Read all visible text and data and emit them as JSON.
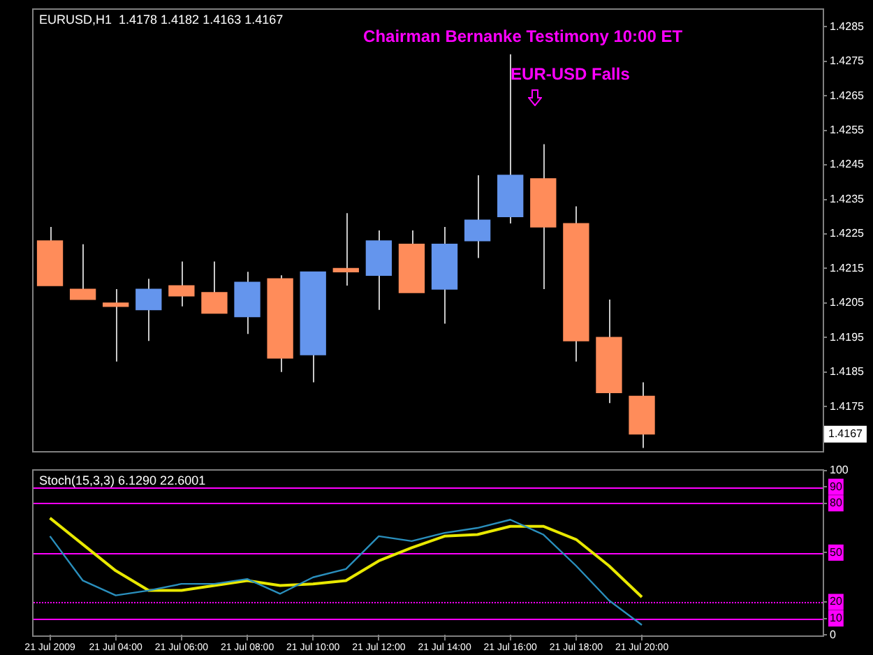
{
  "chart_data": [
    {
      "type": "candlestick",
      "title": "EURUSD,H1  1.4178 1.4182 1.4163 1.4167",
      "categories": [
        null,
        null,
        null,
        null,
        null,
        null,
        null,
        null,
        null,
        null,
        null,
        null,
        null,
        null,
        null,
        null,
        null,
        null,
        null,
        null,
        null,
        null,
        null,
        null
      ],
      "ohlc": [
        [
          1.4223,
          1.4227,
          1.421,
          1.421
        ],
        [
          1.4209,
          1.4222,
          1.4206,
          1.4206
        ],
        [
          1.4205,
          1.4209,
          1.4188,
          1.4204
        ],
        [
          1.4203,
          1.4212,
          1.4194,
          1.4209
        ],
        [
          1.421,
          1.4217,
          1.4204,
          1.4207
        ],
        [
          1.4208,
          1.4217,
          1.4202,
          1.4202
        ],
        [
          1.4201,
          1.4214,
          1.4196,
          1.4211
        ],
        [
          1.4212,
          1.4213,
          1.4185,
          1.4189
        ],
        [
          1.419,
          1.4214,
          1.4182,
          1.4214
        ],
        [
          1.4215,
          1.4231,
          1.421,
          1.4214
        ],
        [
          1.4213,
          1.4226,
          1.4203,
          1.4223
        ],
        [
          1.4222,
          1.4226,
          1.4208,
          1.4208
        ],
        [
          1.4209,
          1.4227,
          1.4199,
          1.4222
        ],
        [
          1.4223,
          1.4242,
          1.4218,
          1.4229
        ],
        [
          1.423,
          1.4277,
          1.4228,
          1.4242
        ],
        [
          1.4241,
          1.4251,
          1.4209,
          1.4227
        ],
        [
          1.4228,
          1.4233,
          1.4188,
          1.4194
        ],
        [
          1.4195,
          1.4206,
          1.4176,
          1.4179
        ],
        [
          1.4178,
          1.4182,
          1.4163,
          1.4167
        ],
        null,
        null,
        null,
        null,
        null
      ],
      "colors": [
        "#ff8c5a",
        "#ff8c5a",
        "#ff8c5a",
        "#6495ed",
        "#ff8c5a",
        "#ff8c5a",
        "#6495ed",
        "#ff8c5a",
        "#6495ed",
        "#ff8c5a",
        "#6495ed",
        "#ff8c5a",
        "#6495ed",
        "#6495ed",
        "#6495ed",
        "#ff8c5a",
        "#ff8c5a",
        "#ff8c5a",
        "#ff8c5a",
        null,
        null,
        null,
        null,
        null
      ],
      "ylim": [
        1.4162,
        1.429
      ],
      "yticks": [
        1.4175,
        1.4185,
        1.4195,
        1.4205,
        1.4215,
        1.4225,
        1.4235,
        1.4245,
        1.4255,
        1.4265,
        1.4275,
        1.4285
      ],
      "tick_labels": "y",
      "annotations": [
        "Chairman Bernanke Testimony 10:00 ET",
        "EUR-USD Falls",
        "1.4167"
      ]
    },
    {
      "type": "line",
      "title": "Stoch(15,3,3) 6.1290 22.6001",
      "categories": [
        "21 Jul 2009",
        null,
        "21 Jul 04:00",
        null,
        "21 Jul 06:00",
        null,
        "21 Jul 08:00",
        null,
        "21 Jul 10:00",
        null,
        "21 Jul 12:00",
        null,
        "21 Jul 14:00",
        null,
        "21 Jul 16:00",
        null,
        "21 Jul 18:00",
        null,
        "21 Jul 20:00",
        null,
        null,
        null,
        null,
        null
      ],
      "series": [
        {
          "color": "#2a8fbd",
          "values": [
            60,
            33,
            24,
            27,
            31,
            31,
            34,
            25,
            35,
            40,
            60,
            57,
            62,
            65,
            70,
            61,
            42,
            21,
            6,
            null,
            null,
            null,
            null,
            null
          ]
        },
        {
          "color": "#e8e800",
          "values": [
            71,
            55,
            39,
            27,
            27,
            30,
            33,
            30,
            31,
            33,
            45,
            53,
            60,
            61,
            66,
            66,
            58,
            42,
            23,
            null,
            null,
            null,
            null,
            null
          ]
        }
      ],
      "ylim": [
        0,
        100
      ],
      "yticks": [
        0,
        10,
        20,
        50,
        80,
        90,
        100
      ],
      "ref_lines": [
        {
          "axis": "y",
          "value": 90,
          "color": "#ff00ff"
        },
        {
          "axis": "y",
          "value": 80,
          "color": "#ff00ff"
        },
        {
          "axis": "y",
          "value": 50,
          "color": "#ff00ff"
        },
        {
          "axis": "y",
          "value": 20,
          "color": "#ff00ff",
          "line_style": "dotted"
        },
        {
          "axis": "y",
          "value": 10,
          "color": "#ff00ff"
        }
      ]
    }
  ]
}
